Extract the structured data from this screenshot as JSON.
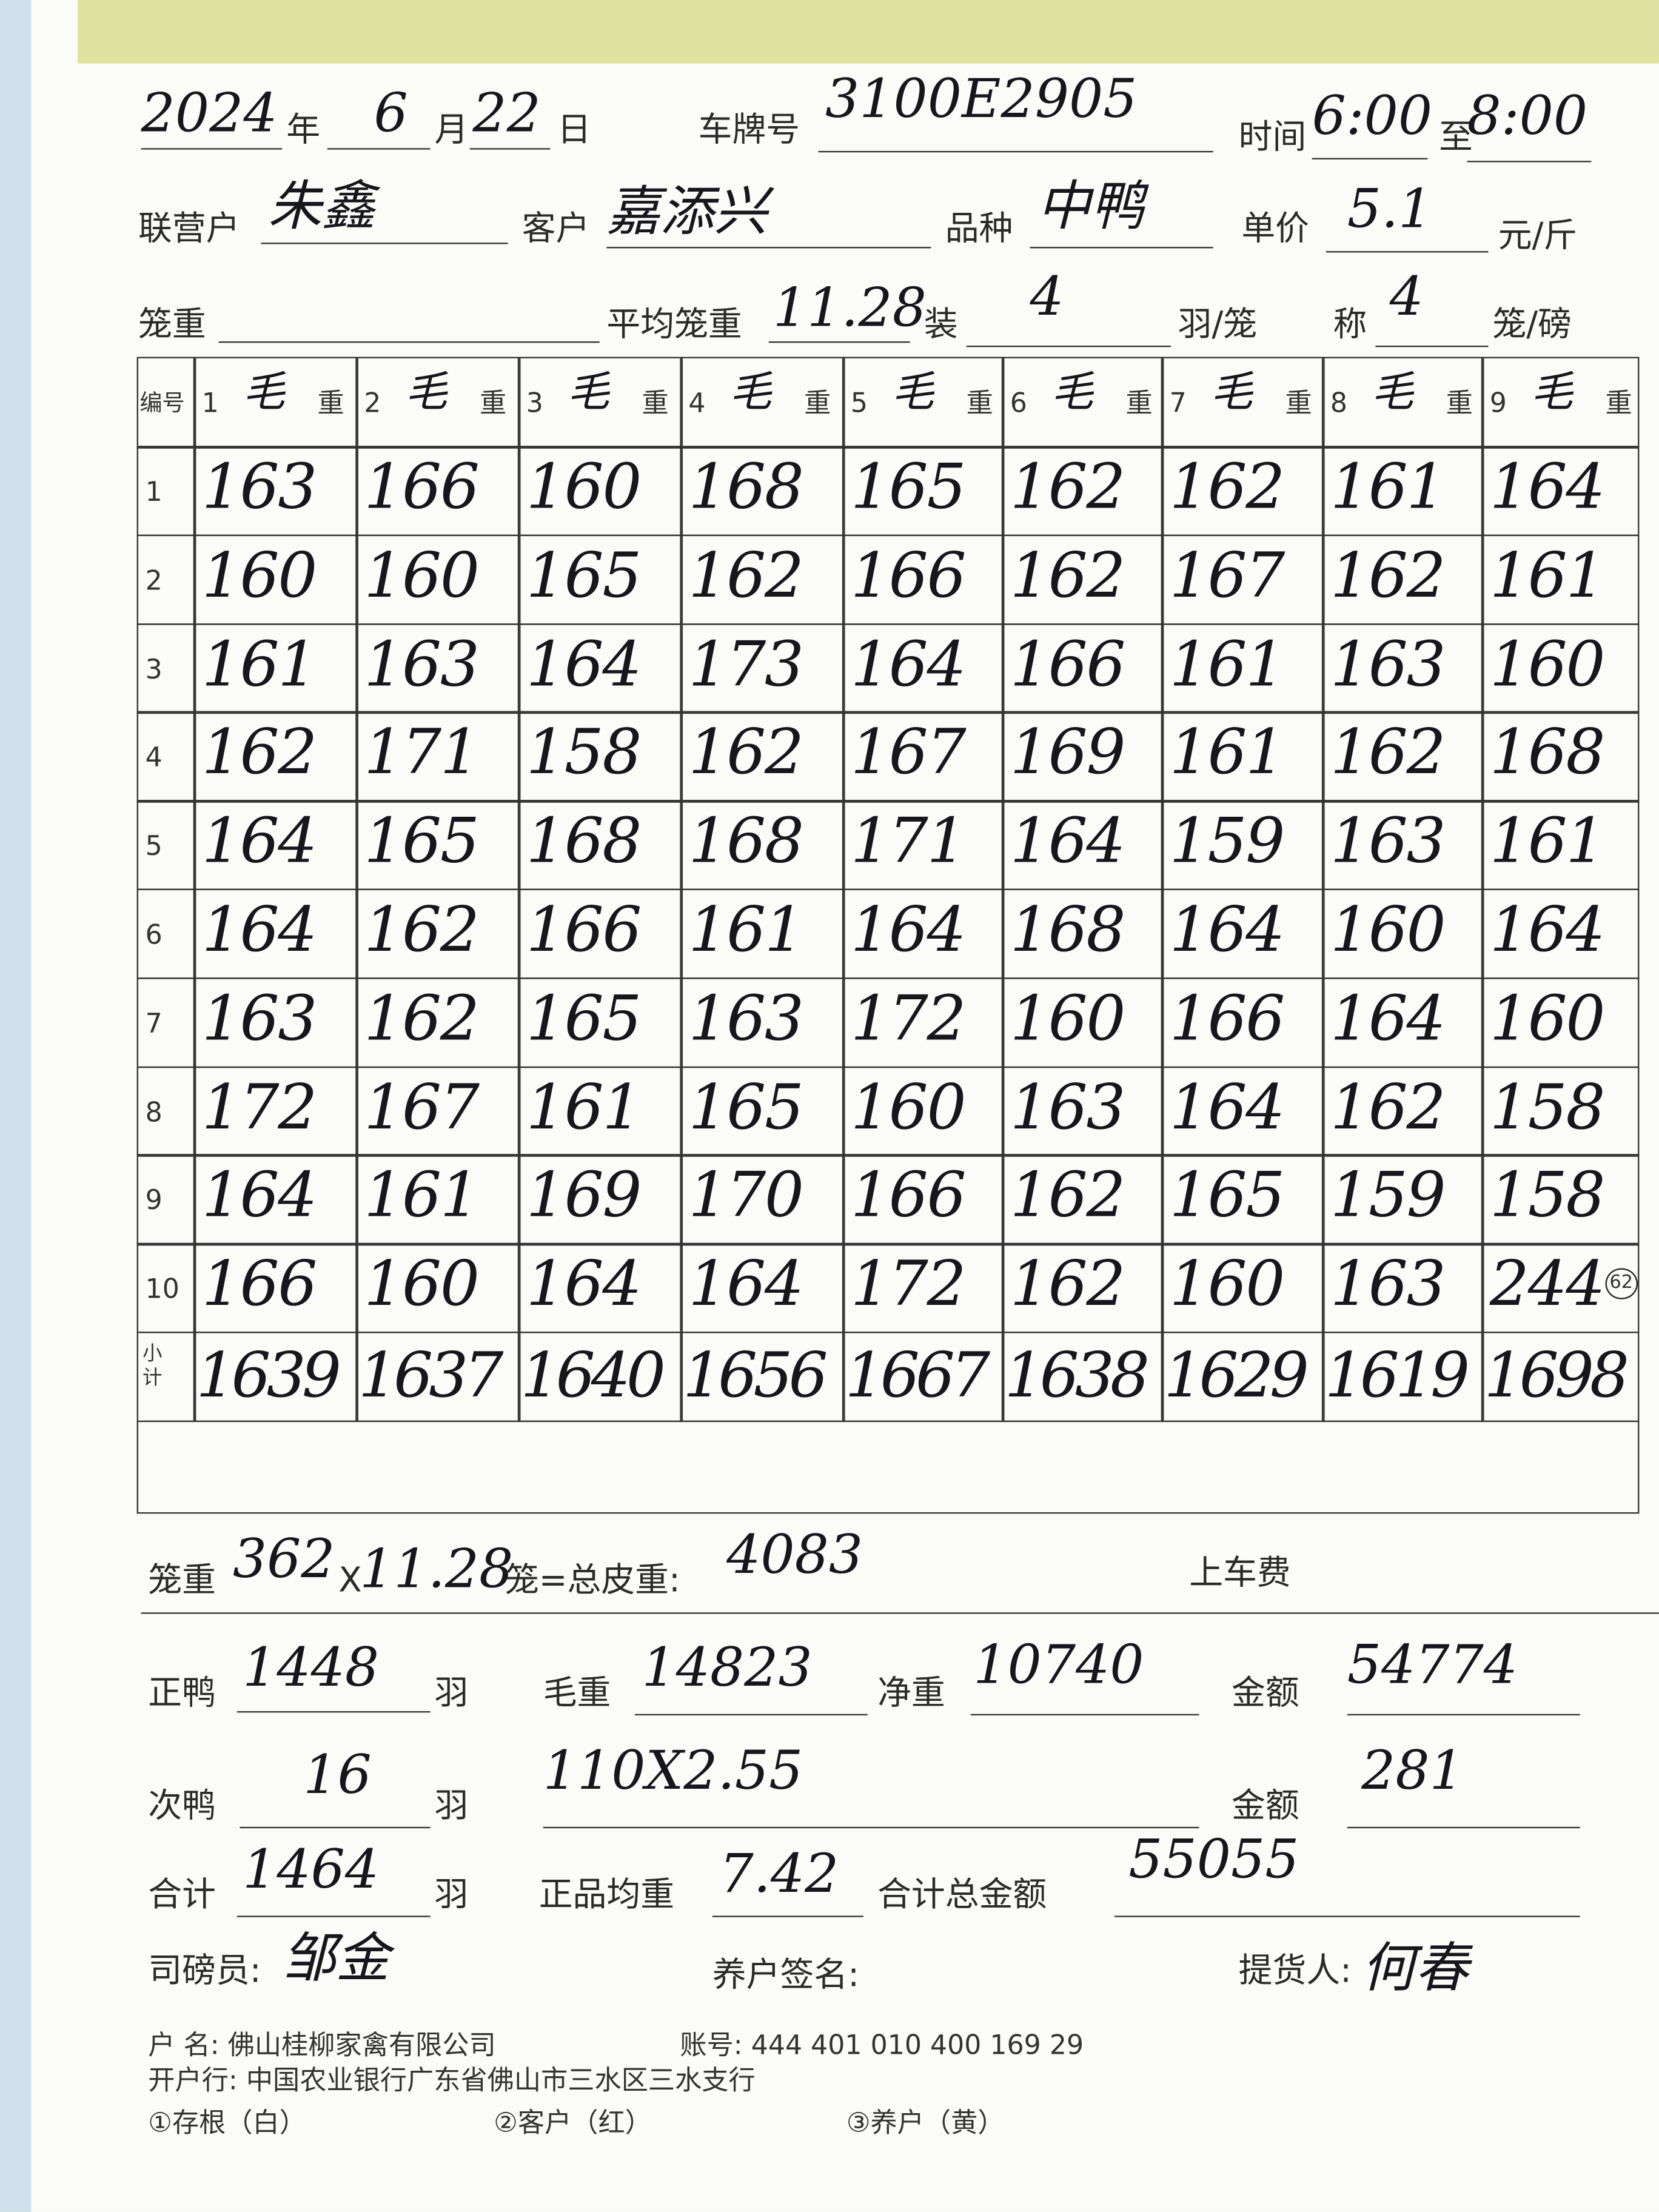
{
  "header": {
    "year": "2024",
    "year_label": "年",
    "month": "6",
    "month_label": "月",
    "day": "22",
    "day_label": "日",
    "plate_label": "车牌号",
    "plate": "3100E2905",
    "time_label": "时间",
    "time_from": "6:00",
    "time_to_label": "至",
    "time_to": "8:00",
    "partner_label": "联营户",
    "partner": "朱鑫",
    "customer_label": "客户",
    "customer": "嘉添兴",
    "variety_label": "品种",
    "variety": "中鸭",
    "price_label": "单价",
    "price": "5.1",
    "price_unit": "元/斤",
    "cage_weight_label": "笼重",
    "avg_cage_weight_label": "平均笼重",
    "avg_cage_weight": "11.28",
    "load_label": "装",
    "load": "4",
    "load_unit": "羽/笼",
    "weigh_label": "称",
    "weigh": "4",
    "weigh_unit": "笼/磅"
  },
  "table": {
    "number_label": "编号",
    "columns": [
      {
        "no": "1",
        "kind": "毛",
        "unit": "重"
      },
      {
        "no": "2",
        "kind": "毛",
        "unit": "重"
      },
      {
        "no": "3",
        "kind": "毛",
        "unit": "重"
      },
      {
        "no": "4",
        "kind": "毛",
        "unit": "重"
      },
      {
        "no": "5",
        "kind": "毛",
        "unit": "重"
      },
      {
        "no": "6",
        "kind": "毛",
        "unit": "重"
      },
      {
        "no": "7",
        "kind": "毛",
        "unit": "重"
      },
      {
        "no": "8",
        "kind": "毛",
        "unit": "重"
      },
      {
        "no": "9",
        "kind": "毛",
        "unit": "重"
      }
    ],
    "row_numbers": [
      "1",
      "2",
      "3",
      "4",
      "5",
      "6",
      "7",
      "8",
      "9",
      "10"
    ],
    "rows": [
      [
        163,
        166,
        160,
        168,
        165,
        162,
        162,
        161,
        164
      ],
      [
        160,
        160,
        165,
        162,
        166,
        162,
        167,
        162,
        161
      ],
      [
        161,
        163,
        164,
        173,
        164,
        166,
        161,
        163,
        160
      ],
      [
        162,
        171,
        158,
        162,
        167,
        169,
        161,
        162,
        168
      ],
      [
        164,
        165,
        168,
        168,
        171,
        164,
        159,
        163,
        161
      ],
      [
        164,
        162,
        166,
        161,
        164,
        168,
        164,
        160,
        164
      ],
      [
        163,
        162,
        165,
        163,
        172,
        160,
        166,
        164,
        160
      ],
      [
        172,
        167,
        161,
        165,
        160,
        163,
        164,
        162,
        158
      ],
      [
        164,
        161,
        169,
        170,
        166,
        162,
        165,
        159,
        158
      ],
      [
        166,
        160,
        164,
        164,
        172,
        162,
        160,
        163,
        244
      ]
    ],
    "last_cell_note": "62",
    "subtotal_label": "小计",
    "subtotals": [
      1639,
      1637,
      1640,
      1656,
      1667,
      1638,
      1629,
      1619,
      1698
    ]
  },
  "summary": {
    "cage_label": "笼重",
    "cages": "362",
    "times": "X",
    "avg_cage_weight": "11.28",
    "tare_label": "笼=总皮重:",
    "tare": "4083",
    "loading_fee_label": "上车费",
    "good_label": "正鸭",
    "good_count": "1448",
    "good_unit": "羽",
    "gross_label": "毛重",
    "gross": "14823",
    "net_label": "净重",
    "net": "10740",
    "amount_label": "金额",
    "amount": "54774",
    "second_label": "次鸭",
    "second_count": "16",
    "second_unit": "羽",
    "second_calc": "110X2.55",
    "second_amount_label": "金额",
    "second_amount": "281",
    "total_label": "合计",
    "total_count": "1464",
    "total_unit": "羽",
    "avg_label": "正品均重",
    "avg": "7.42",
    "total_amount_label": "合计总金额",
    "total_amount": "55055",
    "weigher_label": "司磅员:",
    "weigher": "邹金",
    "farmer_label": "养户签名:",
    "receiver_label": "提货人:",
    "receiver": "何春"
  },
  "footer": {
    "account_name": "户  名: 佛山桂柳家禽有限公司",
    "account_no": "账号: 444 401 010 400 169 29",
    "bank": "开户行: 中国农业银行广东省佛山市三水区三水支行",
    "copy1": "①存根（白）",
    "copy2": "②客户（红）",
    "copy3": "③养户（黄）"
  }
}
